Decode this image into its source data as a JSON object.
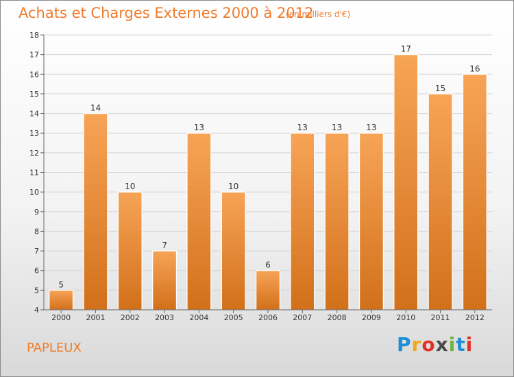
{
  "header": {
    "title": "Achats et Charges Externes 2000 à 2012",
    "subtitle": "(en milliers d'€)"
  },
  "footer": {
    "place": "PAPLEUX",
    "logo_text": "Proxiti",
    "logo_colors": [
      "#1e8fd6",
      "#f2a81d",
      "#e0312a",
      "#4a4a4a",
      "#6fb43f",
      "#1e8fd6",
      "#e0312a"
    ]
  },
  "chart_data": {
    "type": "bar",
    "title": "Achats et Charges Externes 2000 à 2012",
    "subtitle": "(en milliers d'€)",
    "categories": [
      "2000",
      "2001",
      "2002",
      "2003",
      "2004",
      "2005",
      "2006",
      "2007",
      "2008",
      "2009",
      "2010",
      "2011",
      "2012"
    ],
    "values": [
      5,
      14,
      10,
      7,
      13,
      10,
      6,
      13,
      13,
      13,
      17,
      15,
      16
    ],
    "ylim": [
      4,
      18
    ],
    "yticks": [
      4,
      5,
      6,
      7,
      8,
      9,
      10,
      11,
      12,
      13,
      14,
      15,
      16,
      17,
      18
    ],
    "xlabel": "",
    "ylabel": "",
    "grid": true,
    "bar_color_top": "#f7a457",
    "bar_color_bottom": "#d2701a"
  }
}
